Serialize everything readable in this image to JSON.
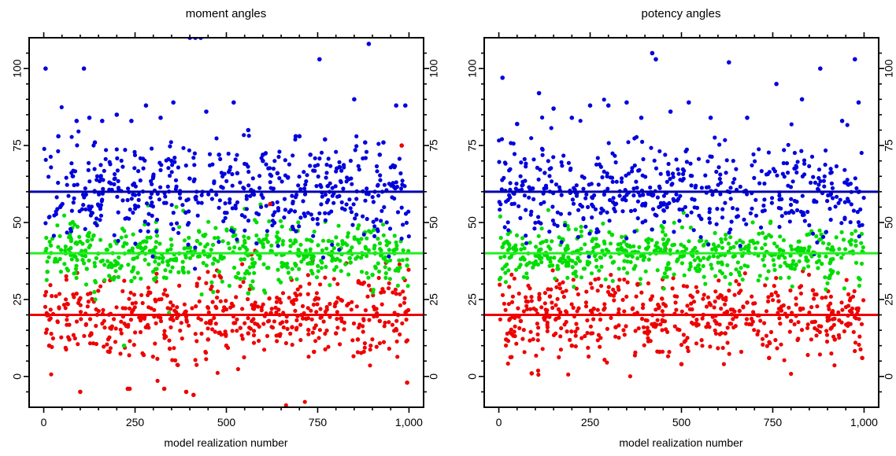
{
  "chart_data": [
    {
      "type": "scatter",
      "title": "moment angles",
      "xlabel": "model realization number",
      "ylabel": "",
      "xlim": [
        -40,
        1040
      ],
      "ylim": [
        -10,
        110
      ],
      "x_ticks": [
        0,
        250,
        500,
        750,
        1000
      ],
      "x_tick_labels": [
        "0",
        "250",
        "500",
        "750",
        "1,000"
      ],
      "y_ticks": [
        0,
        25,
        50,
        75,
        100
      ],
      "y_tick_labels": [
        "0",
        "25",
        "50",
        "75",
        "100"
      ],
      "grid": false,
      "reference_lines": [
        {
          "series": "blue",
          "y": 60
        },
        {
          "series": "green",
          "y": 40
        },
        {
          "series": "red",
          "y": 20
        }
      ],
      "series": [
        {
          "color": "#0000dd",
          "line_color": "#0000b0",
          "values_note": "",
          "x": [
            5,
            40,
            90,
            125,
            160,
            200,
            240,
            280,
            320,
            355,
            400,
            445,
            480,
            520,
            560,
            600,
            640,
            690,
            730,
            770,
            810,
            850,
            890,
            930,
            965,
            990,
            110,
            300,
            350,
            530,
            600,
            755,
            880,
            920,
            960,
            415,
            430,
            700,
            140
          ],
          "y": [
            100,
            78,
            83,
            84,
            83,
            85,
            83,
            88,
            84,
            89,
            110,
            86,
            72,
            89,
            80,
            72,
            66,
            78,
            72,
            77,
            68,
            90,
            108,
            76,
            88,
            88,
            100,
            65,
            70,
            66,
            70,
            103,
            76,
            72,
            68,
            110,
            110,
            78,
            76
          ]
        },
        {
          "color": "#00dd00",
          "line_color": "#22ee22",
          "x": [
            10,
            60,
            120,
            180,
            240,
            300,
            360,
            420,
            480,
            540,
            600,
            660,
            720,
            780,
            840,
            900,
            960,
            995,
            220,
            560
          ],
          "y": [
            34,
            40,
            44,
            36,
            31,
            41,
            38,
            44,
            34,
            38,
            43,
            36,
            39,
            44,
            37,
            33,
            40,
            36,
            10,
            27
          ]
        },
        {
          "color": "#ee0000",
          "line_color": "#ee0000",
          "x": [
            15,
            70,
            100,
            130,
            180,
            230,
            280,
            330,
            390,
            410,
            450,
            500,
            560,
            620,
            680,
            740,
            800,
            860,
            920,
            980,
            995,
            970,
            235
          ],
          "y": [
            10,
            12,
            -5,
            14,
            8,
            -4,
            16,
            -4,
            -5,
            -6,
            12,
            10,
            14,
            56,
            16,
            8,
            14,
            12,
            18,
            75,
            -2,
            20,
            -4
          ]
        }
      ]
    },
    {
      "type": "scatter",
      "title": "potency angles",
      "xlabel": "model realization number",
      "ylabel": "",
      "xlim": [
        -40,
        1040
      ],
      "ylim": [
        -10,
        110
      ],
      "x_ticks": [
        0,
        250,
        500,
        750,
        1000
      ],
      "x_tick_labels": [
        "0",
        "250",
        "500",
        "750",
        "1,000"
      ],
      "y_ticks": [
        0,
        25,
        50,
        75,
        100
      ],
      "y_tick_labels": [
        "0",
        "25",
        "50",
        "75",
        "100"
      ],
      "grid": false,
      "reference_lines": [
        {
          "series": "blue",
          "y": 60
        },
        {
          "series": "green",
          "y": 40
        },
        {
          "series": "red",
          "y": 20
        }
      ],
      "series": [
        {
          "color": "#0000dd",
          "line_color": "#0000b0",
          "x": [
            10,
            50,
            110,
            150,
            200,
            250,
            300,
            350,
            420,
            430,
            470,
            520,
            580,
            630,
            680,
            760,
            830,
            880,
            940,
            975,
            985,
            390
          ],
          "y": [
            97,
            82,
            92,
            87,
            84,
            88,
            88,
            89,
            105,
            103,
            86,
            89,
            84,
            102,
            84,
            95,
            90,
            100,
            83,
            103,
            89,
            84
          ]
        },
        {
          "color": "#00dd00",
          "line_color": "#22ee22",
          "x": [
            10,
            70,
            130,
            190,
            250,
            310,
            370,
            430,
            490,
            550,
            610,
            670,
            730,
            790,
            850,
            910,
            970
          ],
          "y": [
            42,
            38,
            44,
            36,
            40,
            46,
            35,
            41,
            38,
            44,
            37,
            40,
            45,
            36,
            42,
            38,
            40
          ]
        },
        {
          "color": "#ee0000",
          "line_color": "#ee0000",
          "x": [
            20,
            60,
            90,
            140,
            200,
            260,
            320,
            380,
            440,
            500,
            560,
            620,
            680,
            740,
            800,
            860,
            920,
            980,
            995
          ],
          "y": [
            12,
            18,
            1,
            26,
            10,
            22,
            16,
            30,
            8,
            4,
            20,
            14,
            24,
            6,
            18,
            28,
            12,
            22,
            6
          ]
        }
      ]
    }
  ]
}
